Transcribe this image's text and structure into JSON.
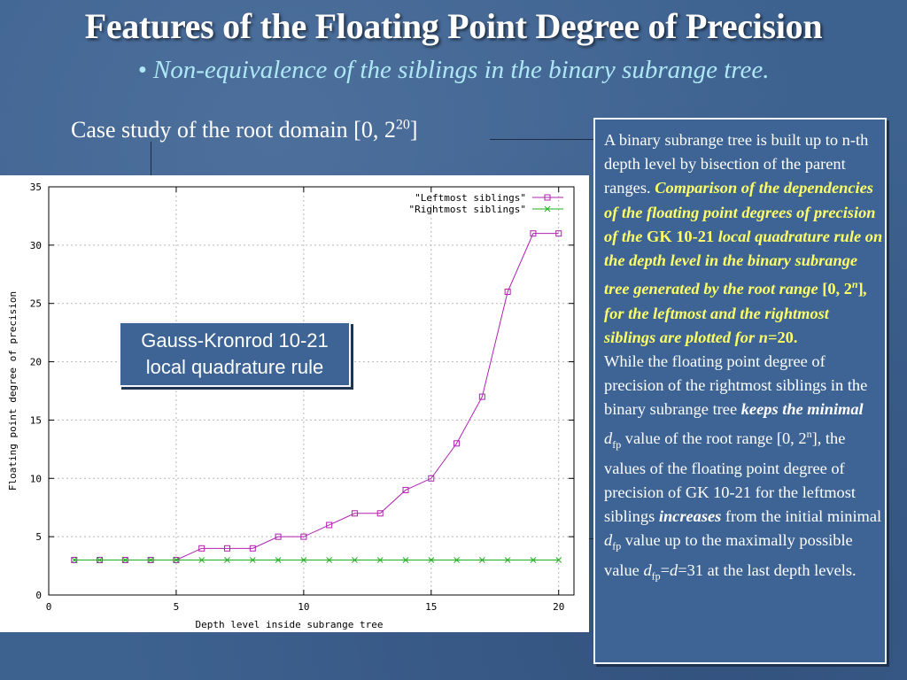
{
  "slide": {
    "title": "Features of the Floating Point Degree of Precision",
    "subtitle": "• Non-equivalence of the siblings in the binary subrange tree.",
    "case_study_prefix": "Case study of the root domain [0, 2",
    "case_study_sup": "20",
    "case_study_suffix": "]"
  },
  "callout": {
    "line1": "Gauss-Kronrod 10-21",
    "line2": "local quadrature rule"
  },
  "text_box": {
    "p1_plain": "A binary subrange tree is built up to n-th depth level by bisection of the parent ranges. ",
    "p1_hl1": "Comparison of the dependencies of the floating point degrees of precision of the ",
    "p1_hl_gk": "GK 10-21",
    "p1_hl2": " local quadrature rule on the depth level in the binary subrange tree generated by the root range ",
    "p1_hl_range_a": "[0, 2",
    "p1_hl_range_sup": "n",
    "p1_hl_range_b": "]",
    "p1_hl3": ", for the leftmost and the rightmost siblings are plotted for ",
    "p1_hl_n": "n",
    "p1_hl_eq": "=20.",
    "p2_a": "While the floating point degree of precision of the rightmost siblings in the binary subrange tree ",
    "p2_keeps": "keeps the minimal",
    "p2_d": "d",
    "p2_fp": "fp",
    "p2_b": " value of the root range [0, 2",
    "p2_sup": "n",
    "p2_c": "], the values of the floating point degree of precision of GK 10-21 for the leftmost siblings ",
    "p2_increases": "increases",
    "p2_d2": " from the initial minimal ",
    "p2_d2v": "d",
    "p2_fp2": "fp",
    "p2_e": " value up to the maximally possible value ",
    "p2_d3": "d",
    "p2_fp3": "fp",
    "p2_eq": "=",
    "p2_d4": "d",
    "p2_f": "=31 at the last depth levels."
  },
  "chart_data": {
    "type": "line",
    "xlabel": "Depth level inside subrange tree",
    "ylabel": "Floating point degree of precision",
    "xlim": [
      0,
      20.6
    ],
    "ylim": [
      0,
      35
    ],
    "xticks": [
      0,
      5,
      10,
      15,
      20
    ],
    "yticks": [
      0,
      5,
      10,
      15,
      20,
      25,
      30,
      35
    ],
    "grid": true,
    "legend_position": "top-right",
    "x": [
      1,
      2,
      3,
      4,
      5,
      6,
      7,
      8,
      9,
      10,
      11,
      12,
      13,
      14,
      15,
      16,
      17,
      18,
      19,
      20
    ],
    "series": [
      {
        "name": "\"Leftmost siblings\"",
        "color": "#b020b0",
        "marker": "square",
        "values": [
          3,
          3,
          3,
          3,
          3,
          4,
          4,
          4,
          5,
          5,
          6,
          7,
          7,
          9,
          10,
          13,
          17,
          26,
          31,
          31
        ]
      },
      {
        "name": "\"Rightmost siblings\"",
        "color": "#20b020",
        "marker": "cross",
        "values": [
          3,
          3,
          3,
          3,
          3,
          3,
          3,
          3,
          3,
          3,
          3,
          3,
          3,
          3,
          3,
          3,
          3,
          3,
          3,
          3
        ]
      }
    ]
  }
}
